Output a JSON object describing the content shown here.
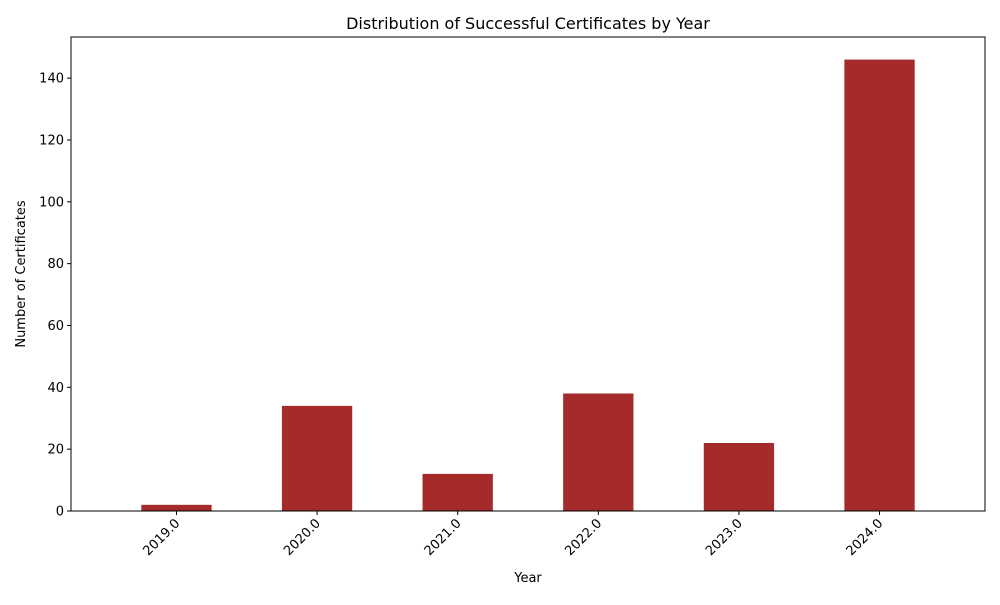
{
  "chart_data": {
    "type": "bar",
    "title": "Distribution of Successful Certificates by Year",
    "xlabel": "Year",
    "ylabel": "Number of Certificates",
    "categories": [
      "2019.0",
      "2020.0",
      "2021.0",
      "2022.0",
      "2023.0",
      "2024.0"
    ],
    "values": [
      2,
      34,
      12,
      38,
      22,
      146
    ],
    "ylim": [
      0,
      153.3
    ],
    "yticks": [
      0,
      20,
      40,
      60,
      80,
      100,
      120,
      140
    ],
    "bar_color": "#a52a2a",
    "grid": false,
    "legend": "none"
  }
}
